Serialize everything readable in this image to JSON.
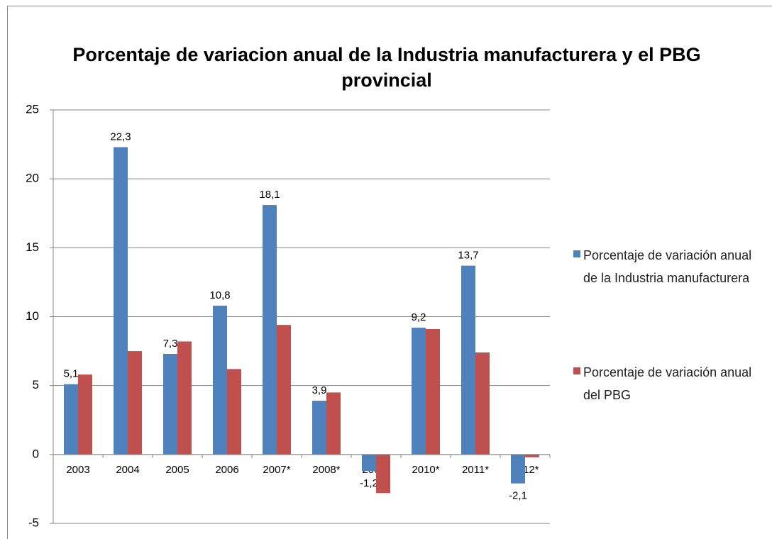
{
  "chart_data": {
    "type": "bar",
    "title": "Porcentaje de variacion anual de la Industria manufacturera y el PBG provincial",
    "categories": [
      "2003",
      "2004",
      "2005",
      "2006",
      "2007*",
      "2008*",
      "2009*",
      "2010*",
      "2011*",
      "2012*"
    ],
    "series": [
      {
        "name": "Porcentaje de variación anual de la Industria manufacturera",
        "color": "#4f81bd",
        "values": [
          5.1,
          22.3,
          7.3,
          10.8,
          18.1,
          3.9,
          -1.2,
          9.2,
          13.7,
          -2.1
        ],
        "value_labels": [
          "5,1",
          "22,3",
          "7,3",
          "10,8",
          "18,1",
          "3,9",
          "-1,2",
          "9,2",
          "13,7",
          "-2,1"
        ]
      },
      {
        "name": "Porcentaje de variación anual del PBG",
        "color": "#c0504d",
        "values": [
          5.8,
          7.5,
          8.2,
          6.2,
          9.4,
          4.5,
          -2.8,
          9.1,
          7.4,
          -0.2
        ]
      }
    ],
    "ylim": [
      -5,
      25
    ],
    "yticks": [
      -5,
      0,
      5,
      10,
      15,
      20,
      25
    ],
    "grid": true,
    "legend": "right"
  }
}
